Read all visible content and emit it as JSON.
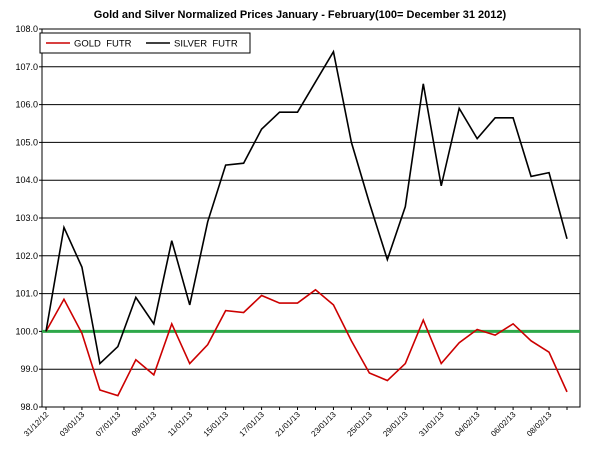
{
  "chart_data": {
    "type": "line",
    "title": "Gold and Silver Normalized Prices January - February(100= December 31 2012)",
    "categories": [
      "31/12/12",
      null,
      "03/01/13",
      null,
      "07/01/13",
      null,
      "09/01/13",
      null,
      "11/01/13",
      null,
      "15/01/13",
      null,
      "17/01/13",
      null,
      "21/01/13",
      null,
      "23/01/13",
      null,
      "25/01/13",
      null,
      "29/01/13",
      null,
      "31/01/13",
      null,
      "04/02/13",
      null,
      "06/02/13",
      null,
      "08/02/13",
      null
    ],
    "series": [
      {
        "name": "GOLD  FUTR",
        "color": "#cc0000",
        "values": [
          100,
          100.85,
          99.95,
          98.45,
          98.3,
          99.25,
          98.85,
          100.2,
          99.15,
          99.65,
          100.55,
          100.5,
          100.95,
          100.75,
          100.75,
          101.1,
          100.7,
          99.75,
          98.9,
          98.7,
          99.15,
          100.3,
          99.15,
          99.7,
          100.05,
          99.9,
          100.2,
          99.75,
          99.45,
          98.4
        ]
      },
      {
        "name": "SILVER  FUTR",
        "color": "#000000",
        "values": [
          100,
          102.75,
          101.7,
          99.15,
          99.6,
          100.9,
          100.2,
          102.4,
          100.7,
          102.9,
          104.4,
          104.45,
          105.35,
          105.8,
          105.8,
          106.6,
          107.4,
          105.0,
          103.4,
          101.9,
          103.3,
          106.55,
          103.85,
          105.9,
          105.1,
          105.65,
          105.65,
          104.1,
          104.2,
          102.45
        ]
      }
    ],
    "ylim": [
      98,
      108
    ],
    "yticks": [
      {
        "value": 98,
        "label": "98.0"
      },
      {
        "value": 99,
        "label": "99.0"
      },
      {
        "value": 100,
        "label": "100.0"
      },
      {
        "value": 101,
        "label": "101.0"
      },
      {
        "value": 102,
        "label": "102.0"
      },
      {
        "value": 103,
        "label": "103.0"
      },
      {
        "value": 104,
        "label": "104.0"
      },
      {
        "value": 105,
        "label": "105.0"
      },
      {
        "value": 106,
        "label": "106.0"
      },
      {
        "value": 107,
        "label": "107.0"
      },
      {
        "value": 108,
        "label": "108.0"
      }
    ],
    "grid": true,
    "reference_line": {
      "value": 100,
      "color": "#2ea84a"
    },
    "legend": "upper left"
  }
}
